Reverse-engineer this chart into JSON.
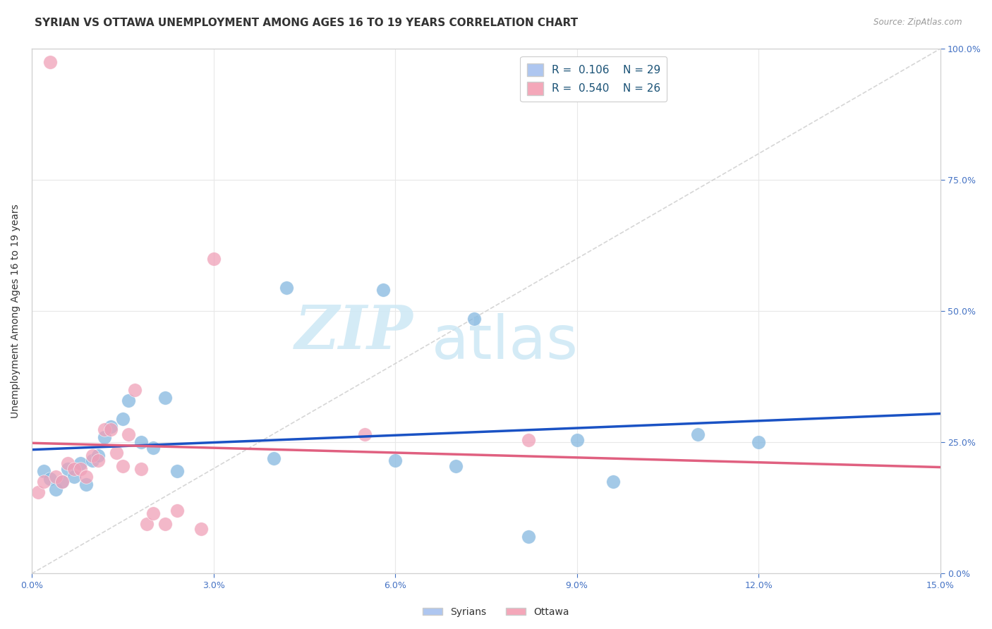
{
  "title": "SYRIAN VS OTTAWA UNEMPLOYMENT AMONG AGES 16 TO 19 YEARS CORRELATION CHART",
  "source": "Source: ZipAtlas.com",
  "ylabel_left": "Unemployment Among Ages 16 to 19 years",
  "x_ticks": [
    0.0,
    0.03,
    0.06,
    0.09,
    0.12,
    0.15
  ],
  "x_tick_labels": [
    "0.0%",
    "3.0%",
    "6.0%",
    "9.0%",
    "12.0%",
    "15.0%"
  ],
  "y_ticks": [
    0.0,
    0.25,
    0.5,
    0.75,
    1.0
  ],
  "y_tick_labels_right": [
    "0.0%",
    "25.0%",
    "50.0%",
    "75.0%",
    "100.0%"
  ],
  "xlim": [
    0.0,
    0.15
  ],
  "ylim": [
    0.0,
    1.0
  ],
  "syrians_color": "#85b8e0",
  "ottawa_color": "#f0a0b8",
  "syrians_x": [
    0.002,
    0.003,
    0.004,
    0.005,
    0.006,
    0.007,
    0.008,
    0.009,
    0.01,
    0.011,
    0.012,
    0.013,
    0.015,
    0.016,
    0.018,
    0.02,
    0.022,
    0.024,
    0.04,
    0.042,
    0.058,
    0.06,
    0.07,
    0.073,
    0.082,
    0.09,
    0.096,
    0.11,
    0.12
  ],
  "syrians_y": [
    0.195,
    0.18,
    0.16,
    0.175,
    0.2,
    0.185,
    0.21,
    0.17,
    0.215,
    0.225,
    0.26,
    0.28,
    0.295,
    0.33,
    0.25,
    0.24,
    0.335,
    0.195,
    0.22,
    0.545,
    0.54,
    0.215,
    0.205,
    0.485,
    0.07,
    0.255,
    0.175,
    0.265,
    0.25
  ],
  "ottawa_x": [
    0.001,
    0.002,
    0.003,
    0.004,
    0.005,
    0.006,
    0.007,
    0.008,
    0.009,
    0.01,
    0.011,
    0.012,
    0.013,
    0.014,
    0.015,
    0.016,
    0.017,
    0.018,
    0.019,
    0.02,
    0.022,
    0.024,
    0.028,
    0.03,
    0.055,
    0.082
  ],
  "ottawa_y": [
    0.155,
    0.175,
    0.975,
    0.185,
    0.175,
    0.21,
    0.2,
    0.2,
    0.185,
    0.225,
    0.215,
    0.275,
    0.275,
    0.23,
    0.205,
    0.265,
    0.35,
    0.2,
    0.095,
    0.115,
    0.095,
    0.12,
    0.085,
    0.6,
    0.265,
    0.255
  ],
  "background_color": "#ffffff",
  "grid_color": "#e8e8e8",
  "title_fontsize": 11,
  "axis_label_fontsize": 10,
  "tick_fontsize": 9,
  "watermark_text": "ZIPatlas",
  "watermark_color": "#cde8f5",
  "syrians_R": 0.106,
  "ottawa_R": 0.54,
  "syrians_N": 29,
  "ottawa_N": 26,
  "legend_blue_color": "#aec6f0",
  "legend_pink_color": "#f4a7b9",
  "legend_text_color": "#1a5276",
  "blue_line_color": "#1a52c4",
  "pink_line_color": "#e06080",
  "diag_line_color": "#cccccc"
}
